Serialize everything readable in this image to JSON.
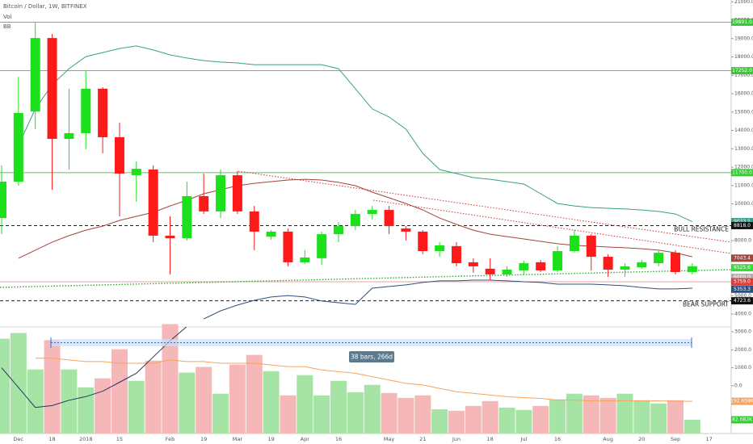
{
  "header": {
    "symbol": "Bitcoin / Dollar, 1W, BITFINEX",
    "indicators": [
      "Vol",
      "BB"
    ]
  },
  "chart_data": {
    "type": "candlestick",
    "categories": [
      null,
      "Dec",
      null,
      "18",
      null,
      "2018",
      null,
      "15",
      null,
      null,
      "Feb",
      null,
      "19",
      null,
      "Mar",
      null,
      "19",
      null,
      "Apr",
      null,
      "16",
      null,
      null,
      "May",
      null,
      "21",
      null,
      "Jun",
      null,
      "18",
      null,
      "Jul",
      null,
      "16",
      null,
      null,
      "Aug",
      null,
      "20",
      null,
      "Sep",
      null,
      "17"
    ],
    "open": [
      9230,
      11210,
      15030,
      19030,
      13540,
      13850,
      16270,
      13630,
      11560,
      11870,
      8270,
      8130,
      10420,
      9590,
      11560,
      9590,
      8220,
      8490,
      6820,
      7040,
      8350,
      8790,
      9450,
      9670,
      8660,
      8490,
      7430,
      7700,
      6820,
      6470,
      6160,
      6380,
      6820,
      6380,
      7430,
      8270,
      7120,
      6420,
      6550,
      6770,
      7340,
      6290,
      null
    ],
    "high": [
      12090,
      16920,
      19910,
      19250,
      16270,
      17230,
      16350,
      14420,
      12310,
      12090,
      9320,
      11210,
      11650,
      11870,
      11780,
      9890,
      8570,
      8660,
      7480,
      8490,
      9010,
      9670,
      9890,
      9890,
      8790,
      8570,
      7920,
      7920,
      7040,
      7040,
      6600,
      6900,
      6950,
      7700,
      8570,
      8350,
      7260,
      6770,
      6950,
      7480,
      7480,
      6770,
      null
    ],
    "low": [
      8350,
      10990,
      14070,
      10770,
      11870,
      12970,
      12750,
      9320,
      10110,
      7920,
      6160,
      8000,
      9450,
      9230,
      9450,
      7480,
      8050,
      6600,
      6730,
      6680,
      7920,
      8570,
      9150,
      8350,
      8000,
      7260,
      7120,
      6600,
      6250,
      5850,
      6030,
      6160,
      6290,
      6290,
      7340,
      6380,
      6030,
      6030,
      6470,
      6600,
      6160,
      6160,
      null
    ],
    "close": [
      11210,
      14950,
      19030,
      13540,
      13850,
      16270,
      13630,
      11650,
      11910,
      8270,
      8130,
      10420,
      9590,
      11560,
      9590,
      8490,
      8490,
      6820,
      7080,
      8350,
      8790,
      9450,
      9670,
      8790,
      8490,
      7430,
      7740,
      6770,
      6600,
      6160,
      6420,
      6770,
      6380,
      7430,
      8270,
      7120,
      6420,
      6600,
      6820,
      7340,
      6290,
      6600,
      null
    ],
    "up_color": "#1de01d",
    "down_color": "#ff1a1a",
    "ylim": [
      3300,
      21100
    ],
    "yticks": [
      {
        "value": 21000,
        "label": "21000.0"
      },
      {
        "value": 20000,
        "label": "20000.0"
      },
      {
        "value": 19000,
        "label": "19000.0"
      },
      {
        "value": 18000,
        "label": "18000.0"
      },
      {
        "value": 17000,
        "label": "17000.0"
      },
      {
        "value": 16000,
        "label": "16000.0"
      },
      {
        "value": 15000,
        "label": "15000.0"
      },
      {
        "value": 14000,
        "label": "14000.0"
      },
      {
        "value": 13000,
        "label": "13000.0"
      },
      {
        "value": 12000,
        "label": "12000.0"
      },
      {
        "value": 11000,
        "label": "11000.0"
      },
      {
        "value": 10000,
        "label": "10000.0"
      },
      {
        "value": 8000,
        "label": "8000.0"
      },
      {
        "value": 5000,
        "label": "5000.0"
      },
      {
        "value": 4000,
        "label": "4000.0"
      }
    ],
    "overlays": [
      {
        "color": "#3a9e8c",
        "values": [
          null,
          13190,
          15170,
          16490,
          17360,
          18020,
          18240,
          18460,
          18600,
          18380,
          18110,
          17940,
          17800,
          17720,
          17670,
          17580,
          17580,
          17580,
          17580,
          17580,
          17360,
          16270,
          15170,
          14730,
          14070,
          12750,
          11870,
          11650,
          11430,
          11340,
          11210,
          11080,
          10550,
          10020,
          9890,
          9800,
          9760,
          9720,
          9670,
          9590,
          9450,
          9030,
          null
        ]
      },
      {
        "color": "#a0453b",
        "values": [
          null,
          7040,
          7480,
          7920,
          8270,
          8570,
          8790,
          9100,
          9320,
          9540,
          9890,
          10200,
          10550,
          10770,
          10990,
          11120,
          11210,
          11300,
          11340,
          11300,
          11170,
          10990,
          10640,
          10330,
          10020,
          9670,
          9230,
          8880,
          8570,
          8350,
          8220,
          8090,
          7960,
          7830,
          7740,
          7700,
          7650,
          7610,
          7560,
          7480,
          7340,
          7120,
          null
        ]
      },
      {
        "color": "#2d4f7c",
        "values": [
          null,
          null,
          null,
          null,
          null,
          null,
          null,
          null,
          null,
          null,
          null,
          null,
          3740,
          4180,
          4490,
          4750,
          4930,
          5010,
          4930,
          4710,
          4620,
          4530,
          5410,
          5500,
          5590,
          5720,
          5810,
          5810,
          5850,
          5850,
          5810,
          5760,
          5720,
          5630,
          5630,
          5630,
          5590,
          5540,
          5450,
          5370,
          5370,
          5410,
          null
        ]
      }
    ],
    "levels": [
      {
        "value": 19891,
        "color": "#5cc85c",
        "dash": false
      },
      {
        "value": 17252,
        "color": "#5cc85c",
        "dash": false
      },
      {
        "value": 11700,
        "color": "#5cc85c",
        "dash": false
      },
      {
        "value": 8818,
        "color": "#222222",
        "dash": true,
        "label": "BULL RESISTANCE"
      },
      {
        "value": 5759,
        "color": "#e9a0a0",
        "dash": false
      },
      {
        "value": 4723.6,
        "color": "#222222",
        "dash": true,
        "label": "BEAR SUPPORT"
      }
    ],
    "price_labels": [
      {
        "value": 19891,
        "label": "19891.0",
        "color": "#33cc33"
      },
      {
        "value": 17252,
        "label": "17252.0",
        "color": "#33cc33"
      },
      {
        "value": 11700,
        "label": "11700.0",
        "color": "#33cc33"
      },
      {
        "value": 9033.5,
        "label": "9033.5",
        "color": "#3a9e8c"
      },
      {
        "value": 8818,
        "label": "8818.0",
        "color": "#111111"
      },
      {
        "value": 7043.4,
        "label": "7043.4",
        "color": "#a0453b"
      },
      {
        "value": 6525.6,
        "label": "6525.6",
        "color": "#33dd33"
      },
      {
        "value": 6000,
        "label": "6000.0",
        "color": "#b0b0b0"
      },
      {
        "value": 5759,
        "label": "5759.0",
        "color": "#e53935"
      },
      {
        "value": 5353.3,
        "label": "5353.3",
        "color": "#2d4f7c"
      },
      {
        "value": 4723.6,
        "label": "4723.6",
        "color": "#111111"
      }
    ],
    "volume": {
      "ylim": [
        0,
        700
      ],
      "up_color": "#a6e4a6",
      "down_color": "#f5b7b7",
      "label_color": "#33cc33",
      "values": [
        567,
        601,
        383,
        558,
        383,
        276,
        330,
        504,
        315,
        436,
        654,
        364,
        398,
        238,
        412,
        470,
        373,
        228,
        349,
        228,
        315,
        247,
        291,
        242,
        213,
        228,
        145,
        136,
        165,
        194,
        155,
        141,
        165,
        204,
        238,
        228,
        213,
        238,
        199,
        179,
        199,
        82.082,
        null
      ],
      "value_labels": [
        null,
        null,
        null,
        null,
        null,
        null,
        null,
        null,
        null,
        null,
        null,
        null,
        null,
        null,
        null,
        null,
        null,
        null,
        null,
        null,
        null,
        null,
        null,
        null,
        null,
        null,
        null,
        null,
        null,
        null,
        null,
        null,
        null,
        null,
        null,
        null,
        null,
        null,
        null,
        null,
        null,
        "82.082K",
        null
      ]
    },
    "volume_ma": {
      "color": "#f7a35c",
      "values": [
        null,
        null,
        450,
        450,
        440,
        430,
        430,
        420,
        420,
        420,
        440,
        430,
        430,
        420,
        420,
        420,
        410,
        400,
        400,
        380,
        370,
        360,
        340,
        320,
        300,
        290,
        270,
        250,
        240,
        230,
        220,
        215,
        210,
        200,
        200,
        195,
        195,
        195,
        195,
        195,
        193,
        192.658,
        null
      ],
      "value_labels": [
        null,
        null,
        null,
        null,
        null,
        null,
        null,
        null,
        null,
        null,
        null,
        null,
        null,
        null,
        null,
        null,
        null,
        null,
        null,
        null,
        null,
        null,
        null,
        null,
        null,
        null,
        null,
        null,
        null,
        null,
        null,
        null,
        null,
        null,
        null,
        null,
        null,
        null,
        null,
        null,
        null,
        "192.658K",
        null
      ]
    },
    "oscillator": {
      "color": "#23395b",
      "ylim": [
        -2650,
        3270
      ],
      "yticks": [
        {
          "value": 3000,
          "label": "3000.0"
        },
        {
          "value": 2000,
          "label": "2000.0"
        },
        {
          "value": 1000,
          "label": "1000.0"
        },
        {
          "value": 0,
          "label": "0.0"
        }
      ],
      "values": [
        1000,
        -100,
        -1200,
        -1100,
        -800,
        -600,
        -300,
        200,
        700,
        1600,
        2500,
        3300,
        null,
        null,
        null,
        null,
        null,
        null,
        null,
        null,
        null,
        null,
        null,
        null,
        null,
        null,
        null,
        null,
        null,
        null,
        null,
        null,
        null,
        null,
        null,
        null,
        null,
        null,
        null,
        null,
        null,
        null,
        null
      ]
    },
    "measure": "38 bars, 266d"
  }
}
